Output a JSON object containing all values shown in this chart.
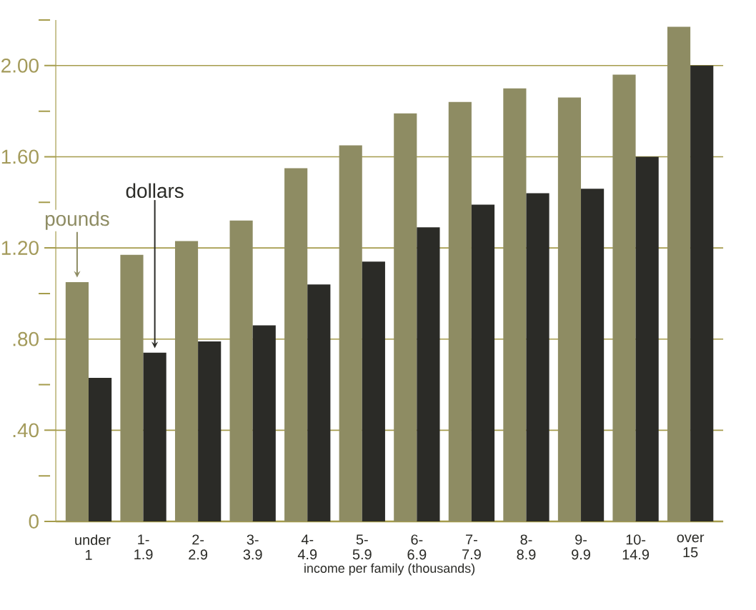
{
  "chart_data": {
    "type": "bar",
    "xlabel": "income per family (thousands)",
    "categories": [
      "under 1",
      "1- 1.9",
      "2- 2.9",
      "3- 3.9",
      "4- 4.9",
      "5- 5.9",
      "6- 6.9",
      "7- 7.9",
      "8- 8.9",
      "9- 9.9",
      "10- 14.9",
      "over 15"
    ],
    "series": [
      {
        "name": "pounds",
        "color": "#8e8c63",
        "values": [
          1.05,
          1.17,
          1.23,
          1.32,
          1.55,
          1.65,
          1.79,
          1.84,
          1.9,
          1.86,
          1.96,
          2.17
        ]
      },
      {
        "name": "dollars",
        "color": "#2b2b27",
        "values": [
          0.63,
          0.74,
          0.79,
          0.86,
          1.04,
          1.14,
          1.29,
          1.39,
          1.44,
          1.46,
          1.6,
          2.0
        ]
      }
    ],
    "ylim": [
      0,
      2.2
    ],
    "yticks": [
      {
        "value": 0,
        "label": "0"
      },
      {
        "value": 0.2,
        "label": null
      },
      {
        "value": 0.4,
        "label": ".40"
      },
      {
        "value": 0.6,
        "label": null
      },
      {
        "value": 0.8,
        "label": ".80"
      },
      {
        "value": 1.0,
        "label": null
      },
      {
        "value": 1.2,
        "label": "1.20"
      },
      {
        "value": 1.4,
        "label": null
      },
      {
        "value": 1.6,
        "label": "1.60"
      },
      {
        "value": 1.8,
        "label": null
      },
      {
        "value": 2.0,
        "label": "2.00"
      },
      {
        "value": 2.2,
        "label": null
      }
    ],
    "grid": "y"
  }
}
